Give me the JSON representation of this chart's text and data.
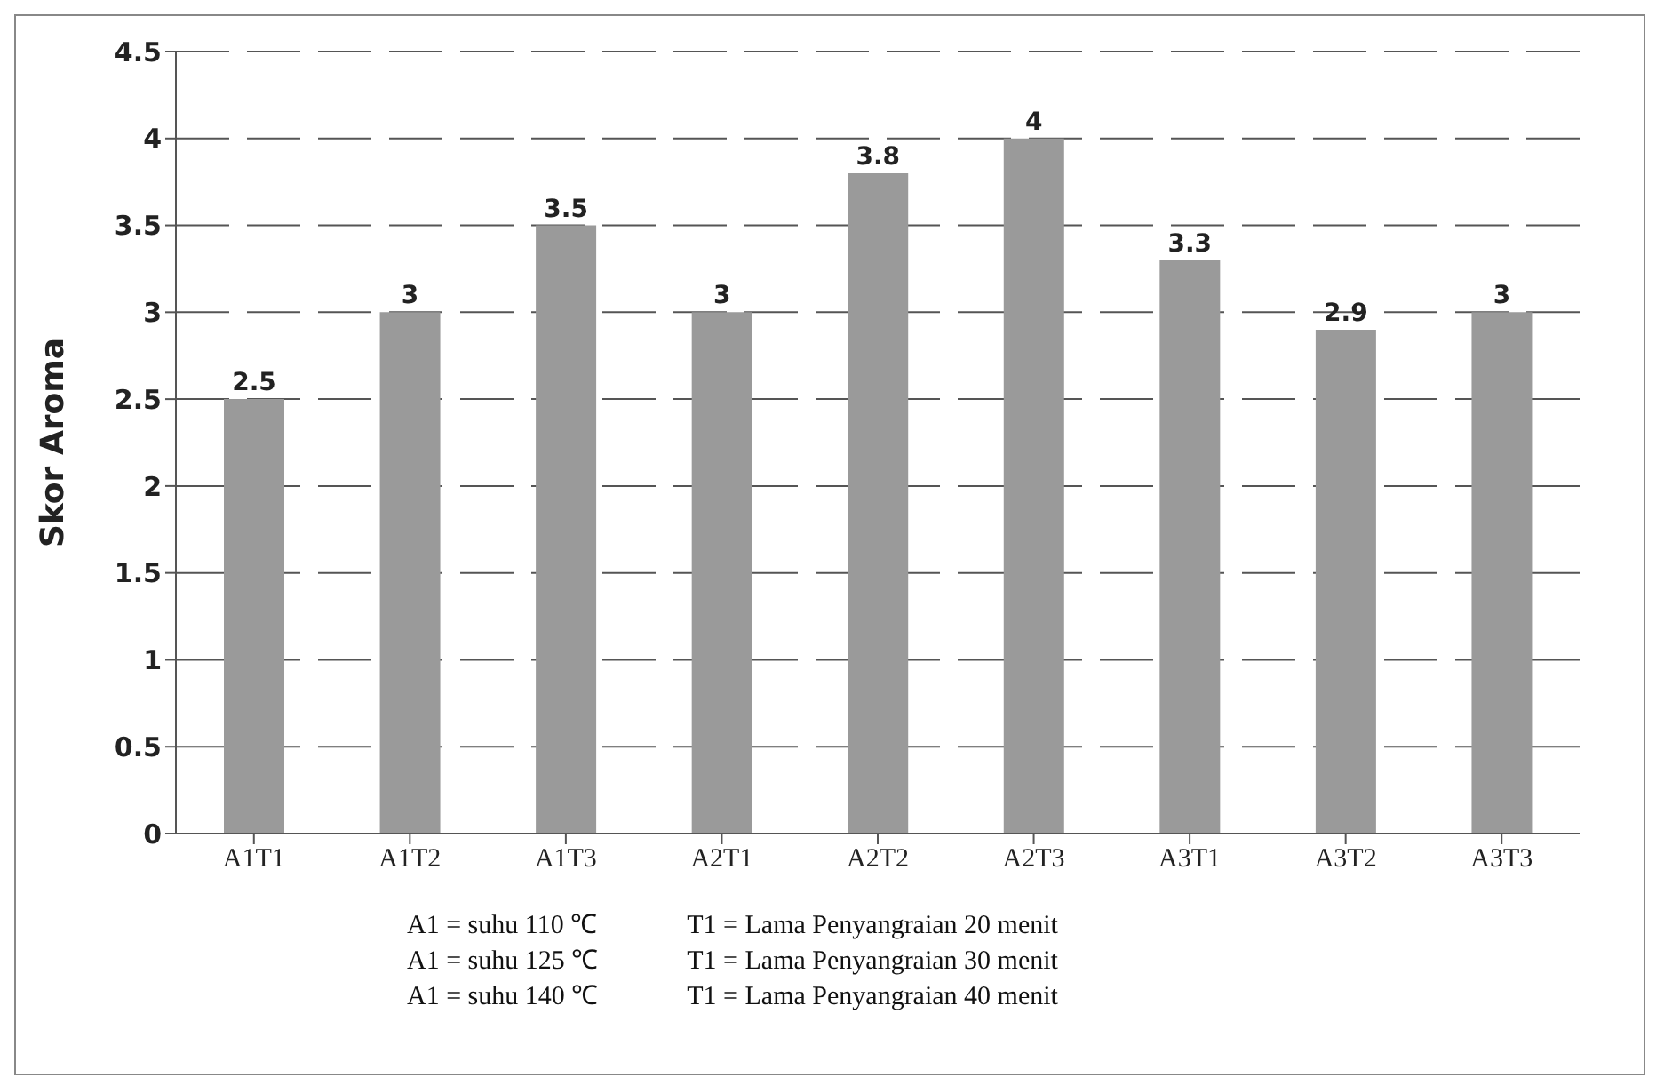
{
  "chart_data": {
    "type": "bar",
    "ylabel": "Skor Aroma",
    "categories": [
      "A1T1",
      "A1T2",
      "A1T3",
      "A2T1",
      "A2T2",
      "A2T3",
      "A3T1",
      "A3T2",
      "A3T3"
    ],
    "values": [
      2.5,
      3,
      3.5,
      3,
      3.8,
      4,
      3.3,
      2.9,
      3
    ],
    "color": "#9a9a9a",
    "data_labels": true,
    "ylim": [
      0,
      4.5
    ],
    "yticks": [
      0,
      0.5,
      1,
      1.5,
      2,
      2.5,
      3,
      3.5,
      4,
      4.5
    ],
    "grid": "y",
    "annotations": [
      "A1 = suhu 110 ℃",
      "A1 = suhu 125 ℃",
      "A1 = suhu 140 ℃",
      "T1 = Lama Penyangraian 20 menit",
      "T1 = Lama Penyangraian 30 menit",
      "T1 = Lama Penyangraian 40 menit"
    ]
  }
}
